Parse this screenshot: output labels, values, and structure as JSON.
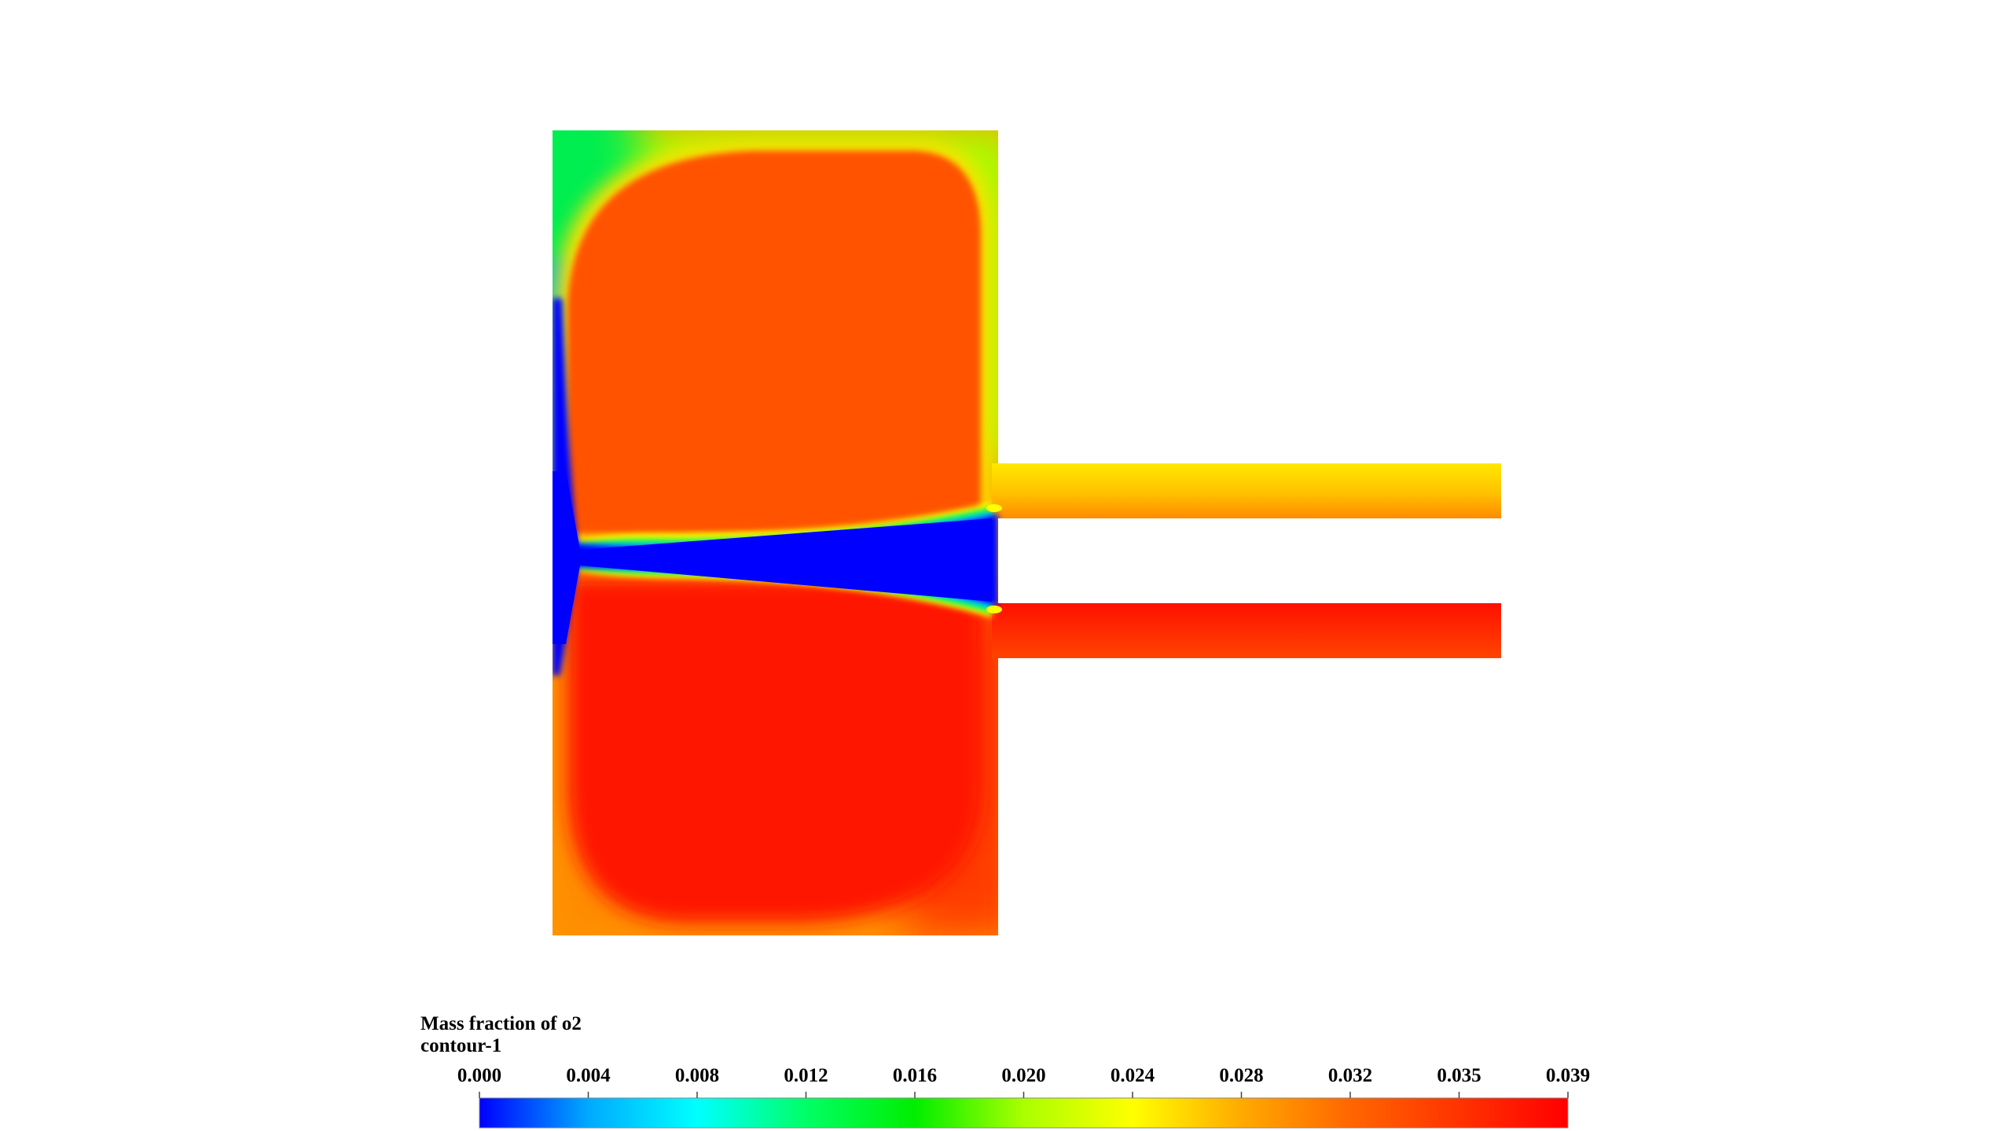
{
  "legend": {
    "title": "Mass fraction of o2",
    "subtitle": "contour-1",
    "ticks": [
      "0.000",
      "0.004",
      "0.008",
      "0.012",
      "0.016",
      "0.020",
      "0.024",
      "0.028",
      "0.032",
      "0.035",
      "0.039"
    ],
    "colormap": [
      "#0000ff",
      "#00aaff",
      "#00ffff",
      "#00ff66",
      "#00ee00",
      "#aaff00",
      "#ffff00",
      "#ffaa00",
      "#ff6600",
      "#ff3300",
      "#ff0000"
    ]
  },
  "field_colors": {
    "upper_recirculation": "#ff5200",
    "lower_recirculation": "#ff1400",
    "jet_core": "#0000ff",
    "top_left_corner": "#00ee50",
    "top_right_corner": "#a8ff00",
    "bottom_left_corner": "#ff9900",
    "upper_outlet": "#ffc800",
    "lower_outlet": "#ff3a00"
  }
}
